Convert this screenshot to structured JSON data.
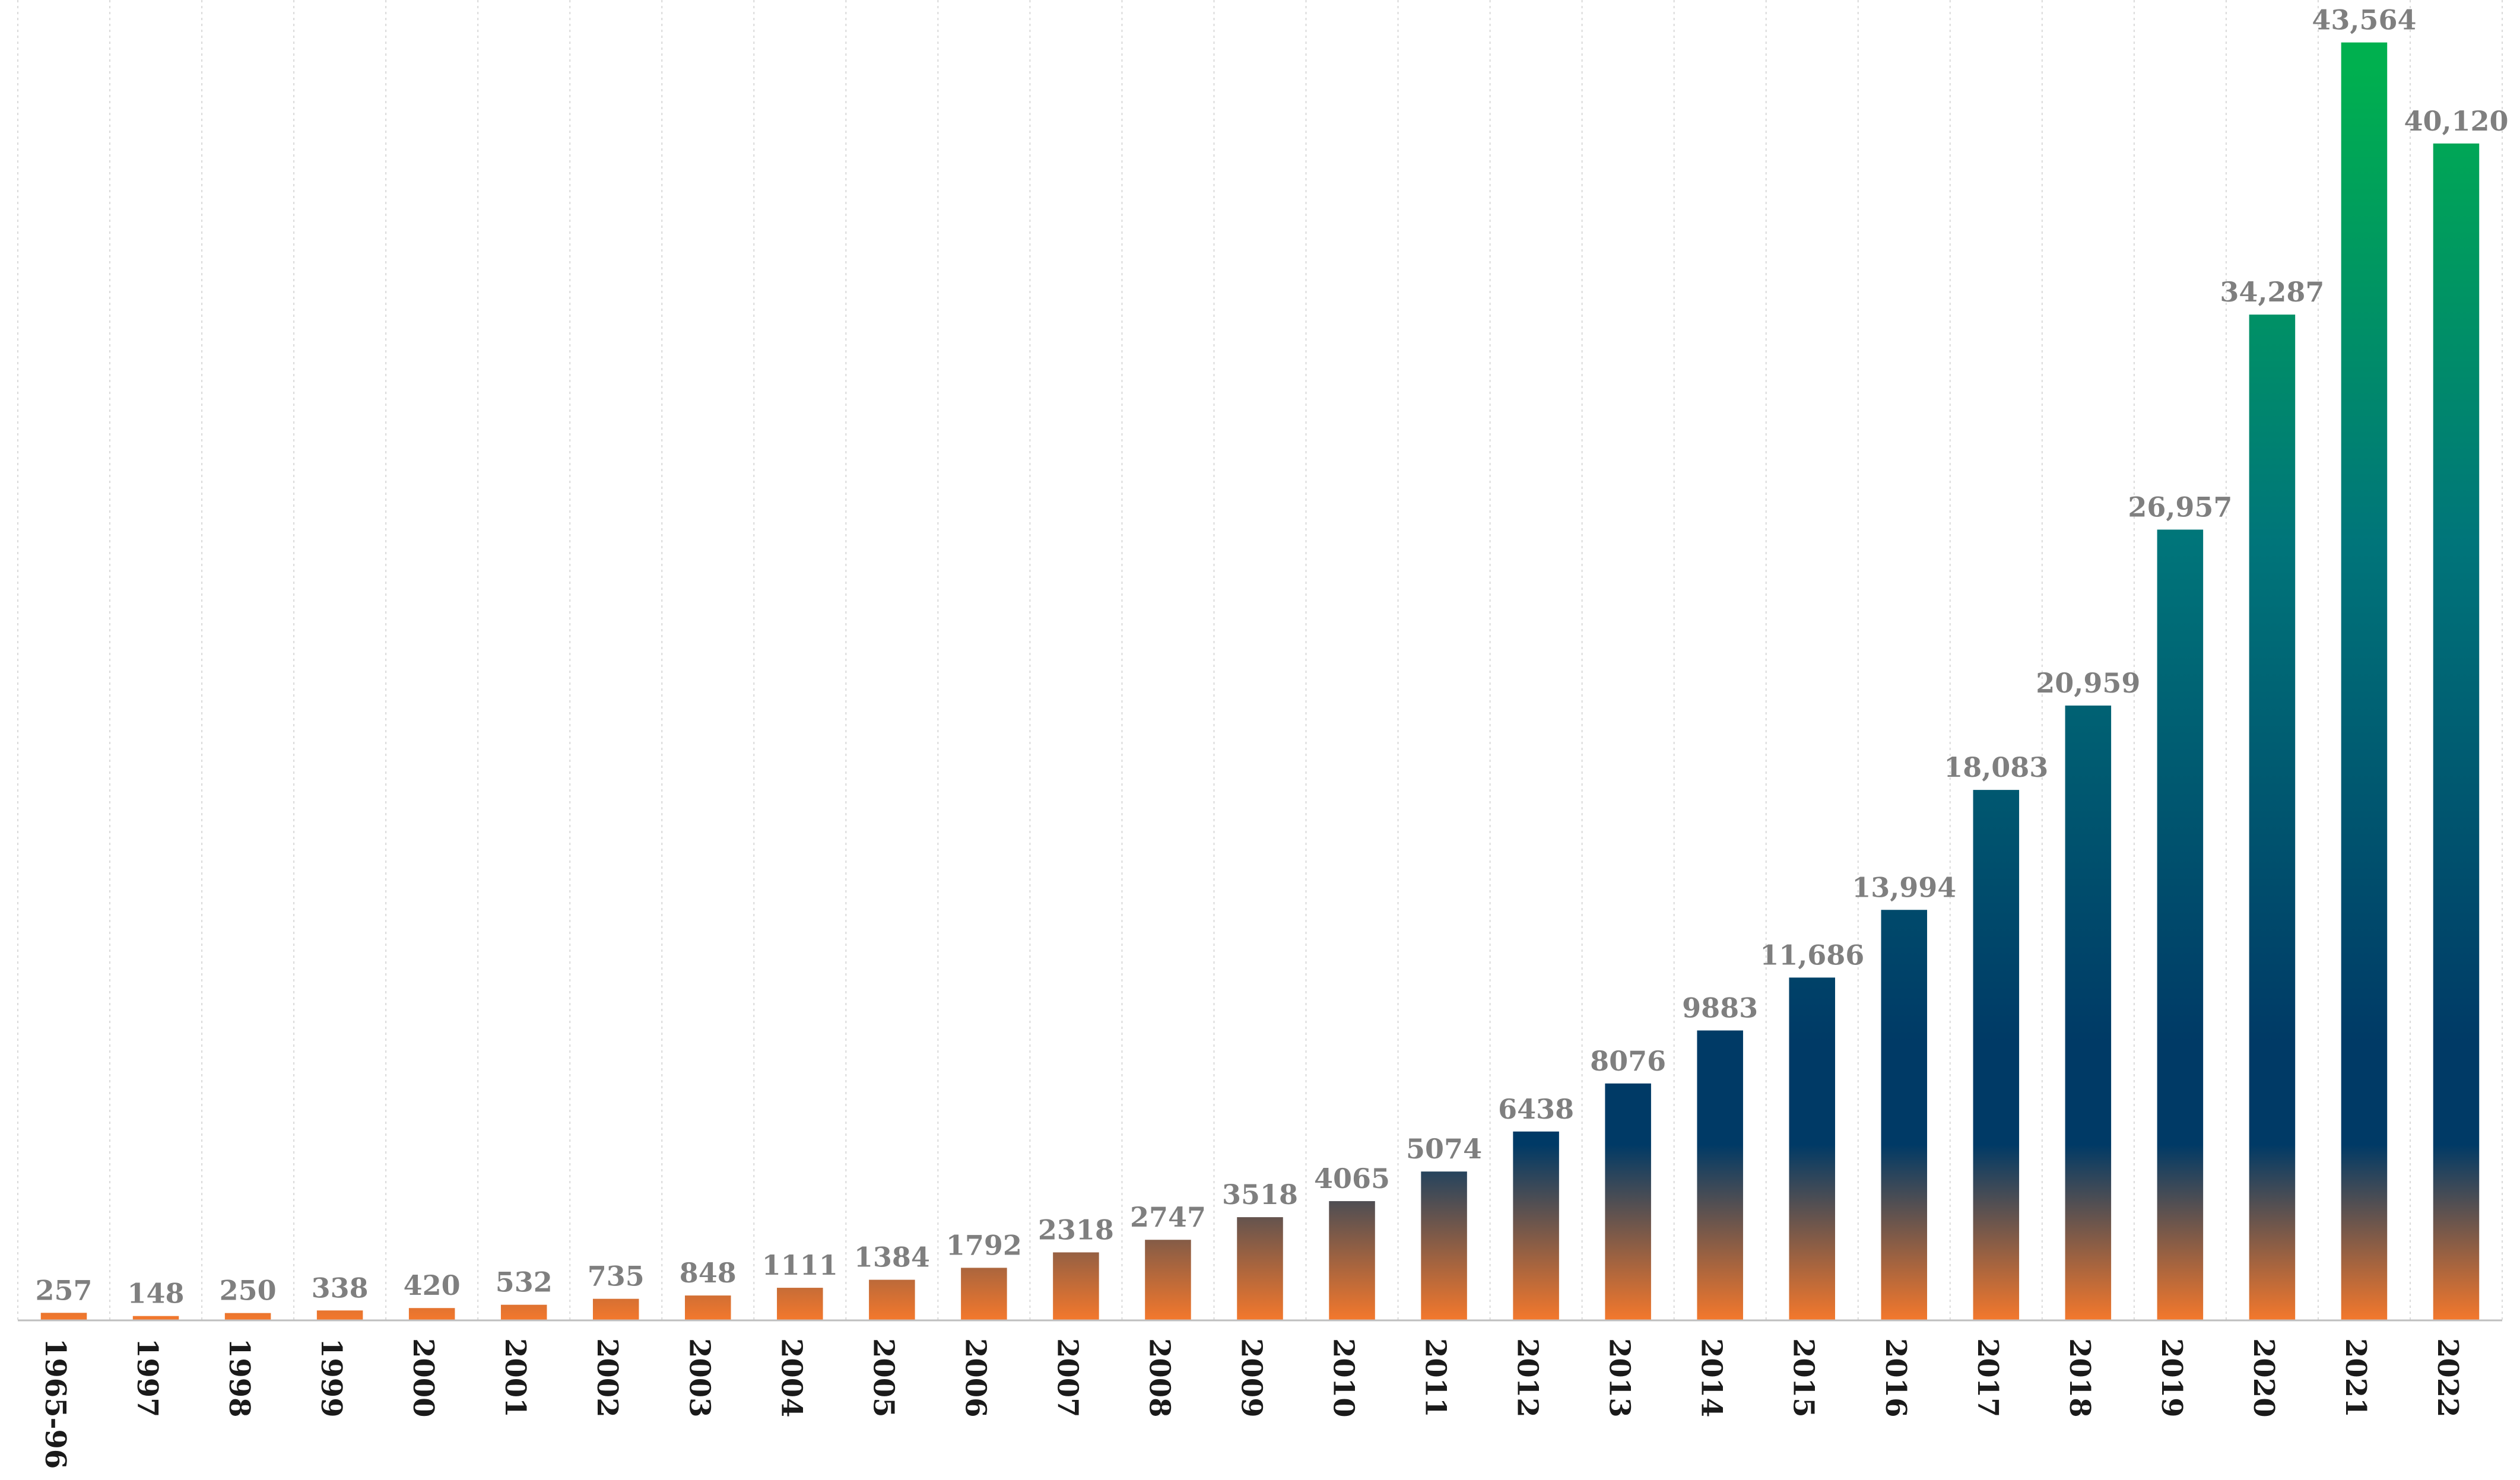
{
  "chart_data": {
    "type": "bar",
    "title": "",
    "xlabel": "",
    "ylabel": "",
    "ylim": [
      0,
      44000
    ],
    "grid": "vertical-dotted",
    "legend": "none",
    "categories": [
      "1965-96",
      "1997",
      "1998",
      "1999",
      "2000",
      "2001",
      "2002",
      "2003",
      "2004",
      "2005",
      "2006",
      "2007",
      "2008",
      "2009",
      "2010",
      "2011",
      "2012",
      "2013",
      "2014",
      "2015",
      "2016",
      "2017",
      "2018",
      "2019",
      "2020",
      "2021",
      "2022"
    ],
    "values": [
      257,
      148,
      250,
      338,
      420,
      532,
      735,
      848,
      1111,
      1384,
      1792,
      2318,
      2747,
      3518,
      4065,
      5074,
      6438,
      8076,
      9883,
      11686,
      13994,
      18083,
      20959,
      26957,
      34287,
      43564,
      40120
    ],
    "value_labels": [
      "257",
      "148",
      "250",
      "338",
      "420",
      "532",
      "735",
      "848",
      "1111",
      "1384",
      "1792",
      "2318",
      "2747",
      "3518",
      "4065",
      "5074",
      "6438",
      "8076",
      "9883",
      "11,686",
      "13,994",
      "18,083",
      "20,959",
      "26,957",
      "34,287",
      "43,564",
      "40,120"
    ],
    "colors": {
      "bar_top": "#00b04f",
      "bar_mid": "#00757a",
      "bar_low": "#003a66",
      "bar_base": "#f4782c",
      "value_label": "#7f7f7f",
      "tick_label": "#1a1a1a",
      "grid": "#d9d9d9",
      "axis": "#bfbfbf"
    }
  }
}
